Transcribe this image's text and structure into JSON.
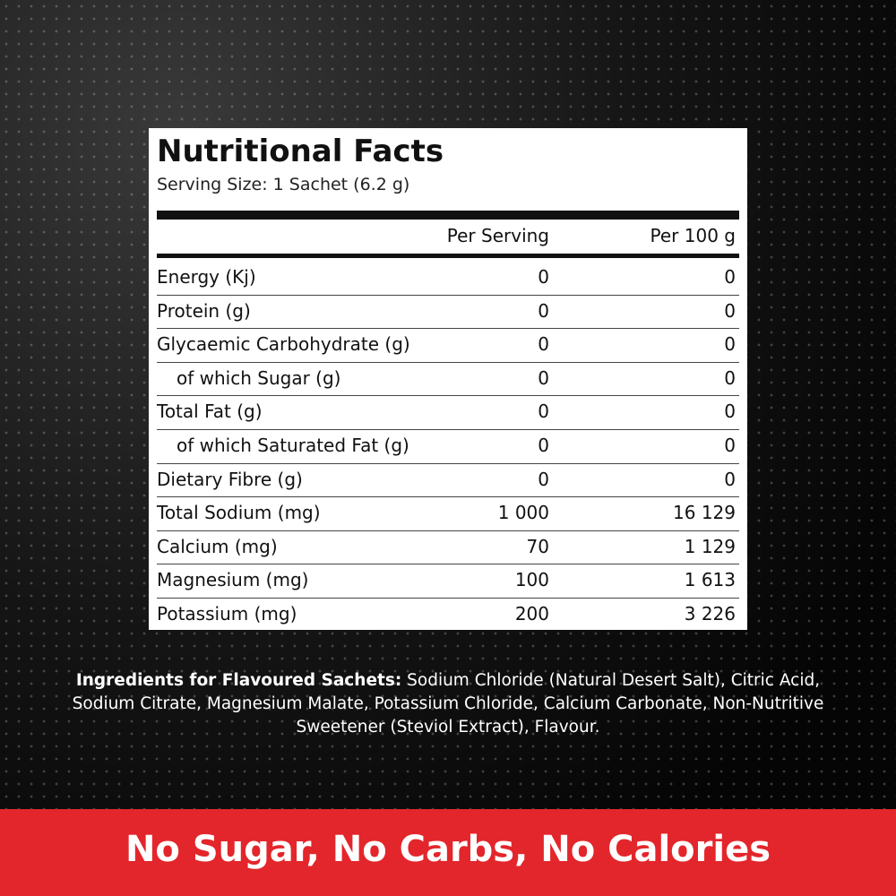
{
  "header": {
    "title": "Nutritional Facts",
    "serving_size": "Serving Size: 1 Sachet (6.2 g)"
  },
  "table": {
    "columns": [
      "Per Serving",
      "Per 100 g"
    ],
    "rows": [
      {
        "label": "Energy (Kj)",
        "values": [
          "0",
          "0"
        ]
      },
      {
        "label": "Protein (g)",
        "values": [
          "0",
          "0"
        ]
      },
      {
        "label": "Glycaemic Carbohydrate (g)",
        "values": [
          "0",
          "0"
        ]
      },
      {
        "label": "of which Sugar (g)",
        "values": [
          "0",
          "0"
        ],
        "indent": true
      },
      {
        "label": "Total Fat (g)",
        "values": [
          "0",
          "0"
        ]
      },
      {
        "label": "of which Saturated Fat (g)",
        "values": [
          "0",
          "0"
        ],
        "indent": true
      },
      {
        "label": "Dietary Fibre (g)",
        "values": [
          "0",
          "0"
        ]
      },
      {
        "label": "Total Sodium (mg)",
        "values": [
          "1 000",
          "16 129"
        ]
      },
      {
        "label": "Calcium (mg)",
        "values": [
          "70",
          "1 129"
        ]
      },
      {
        "label": "Magnesium (mg)",
        "values": [
          "100",
          "1 613"
        ]
      },
      {
        "label": "Potassium (mg)",
        "values": [
          "200",
          "3 226"
        ]
      }
    ]
  },
  "ingredients": {
    "label": "Ingredients for Flavoured Sachets:",
    "text": "Sodium Chloride (Natural Desert Salt), Citric Acid, Sodium Citrate, Magnesium Malate, Potassium Chloride, Calcium Carbonate, Non-Nutritive Sweetener (Steviol Extract), Flavour."
  },
  "banner": {
    "text": "No Sugar, No Carbs, No Calories"
  }
}
